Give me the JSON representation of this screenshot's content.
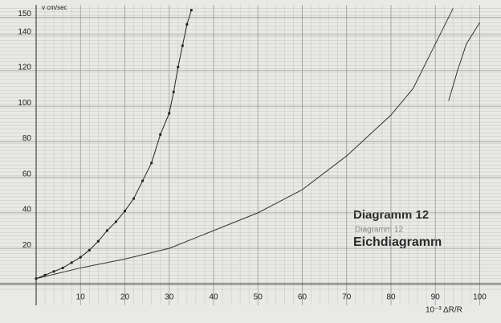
{
  "chart_data": {
    "type": "line",
    "y_label": "v cm/sec",
    "x_label": "10⁻³ ΔR/R",
    "annotations": [
      "Diagramm 12",
      "Diagramm 12",
      "Eichdiagramm"
    ],
    "xlim": [
      0,
      101
    ],
    "ylim": [
      -3,
      157
    ],
    "xticks": [
      10,
      20,
      30,
      40,
      50,
      60,
      70,
      80,
      90,
      100
    ],
    "yticks": [
      20,
      40,
      60,
      80,
      100,
      120,
      140,
      150
    ],
    "grid": true,
    "series": [
      {
        "color": "#222",
        "markers": true,
        "x": [
          0,
          2,
          4,
          6,
          8,
          10,
          12,
          14,
          16,
          18,
          20,
          22,
          24,
          26,
          28,
          30,
          31,
          32,
          33,
          34,
          35
        ],
        "values": [
          3,
          5,
          7,
          9,
          12,
          15,
          19,
          24,
          30,
          35,
          41,
          48,
          58,
          68,
          84,
          96,
          108,
          122,
          134,
          146,
          154
        ]
      },
      {
        "color": "#333",
        "markers": false,
        "x": [
          0,
          10,
          20,
          30,
          40,
          50,
          60,
          70,
          80,
          85,
          90,
          94
        ],
        "values": [
          3,
          9,
          14,
          20,
          30,
          40,
          53,
          72,
          95,
          110,
          135,
          155
        ]
      },
      {
        "color": "#333",
        "markers": false,
        "x": [
          93,
          95,
          97,
          100
        ],
        "values": [
          103,
          120,
          135,
          147
        ]
      }
    ]
  }
}
